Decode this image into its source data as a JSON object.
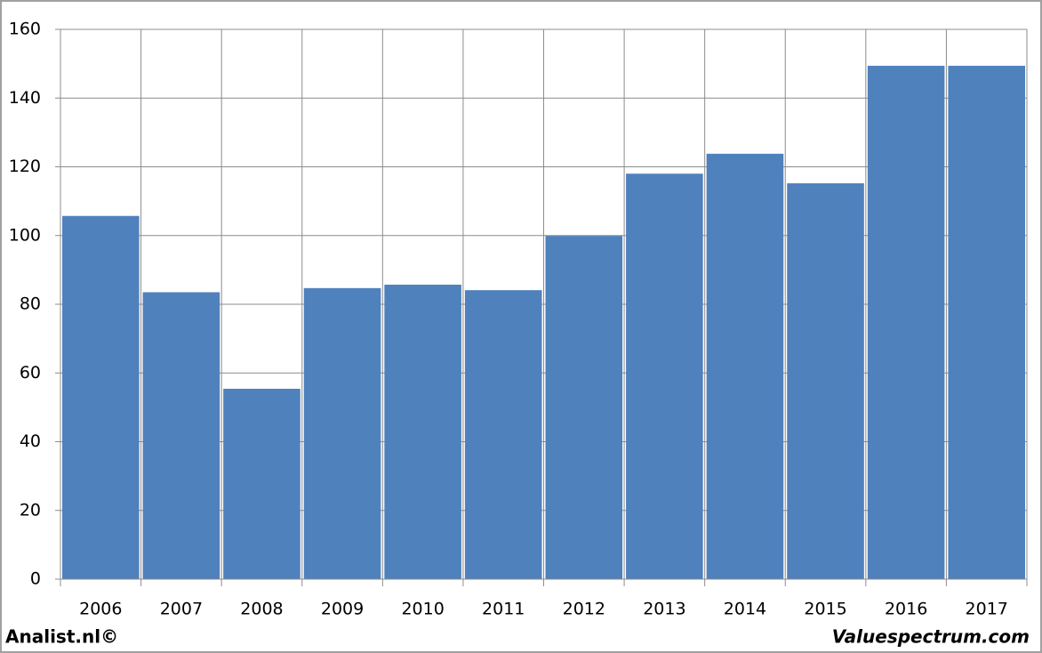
{
  "chart_data": {
    "type": "bar",
    "categories": [
      "2006",
      "2007",
      "2008",
      "2009",
      "2010",
      "2011",
      "2012",
      "2013",
      "2014",
      "2015",
      "2016",
      "2017"
    ],
    "values": [
      105.7,
      83.5,
      55.4,
      84.7,
      85.7,
      84.1,
      99.9,
      118,
      123.8,
      115.2,
      149.4,
      149.4
    ],
    "color": "#4f81bd",
    "ylim": [
      0,
      160
    ],
    "yticks": [
      0,
      20,
      40,
      60,
      80,
      100,
      120,
      140,
      160
    ],
    "grid": true,
    "annotations": [
      "Analist.nl©",
      "Valuespectrum.com"
    ]
  }
}
